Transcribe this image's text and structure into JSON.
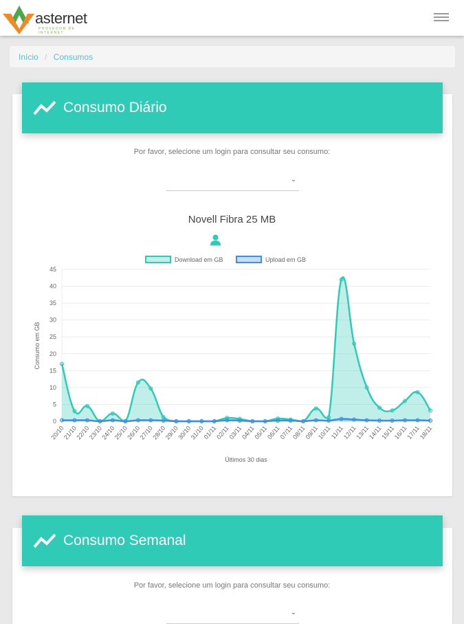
{
  "header": {
    "logo_text": "asternet",
    "logo_tagline": "PROVEDOR DE INTERNET",
    "menu_icon": "hamburger-icon"
  },
  "breadcrumb": {
    "home": "Início",
    "separator": "/",
    "current": "Consumos"
  },
  "daily": {
    "title": "Consumo Diário",
    "prompt": "Por favor, selecione um login para consultar seu consumo:",
    "select_value": "",
    "plan": "Novell Fibra 25 MB"
  },
  "weekly": {
    "title": "Consumo Semanal",
    "prompt": "Por favor, selecione um login para consultar seu consumo:",
    "select_value": ""
  },
  "colors": {
    "accent": "#2fcbb7",
    "download": "#2fcbb7",
    "upload": "#3b8fe8"
  },
  "chart_data": {
    "type": "line",
    "xlabel": "Últimos 30 dias",
    "ylabel": "Consumo em GB",
    "ylim": [
      0,
      45
    ],
    "yticks": [
      0,
      5,
      10,
      15,
      20,
      25,
      30,
      35,
      40,
      45
    ],
    "legend_position": "top",
    "categories": [
      "20/10",
      "21/10",
      "22/10",
      "23/10",
      "24/10",
      "25/10",
      "26/10",
      "27/10",
      "28/10",
      "29/10",
      "30/10",
      "31/10",
      "01/11",
      "02/11",
      "03/11",
      "04/11",
      "05/11",
      "06/11",
      "07/11",
      "08/11",
      "09/11",
      "10/11",
      "11/11",
      "12/11",
      "13/11",
      "14/11",
      "15/11",
      "16/11",
      "17/11",
      "18/11"
    ],
    "series": [
      {
        "name": "Download em GB",
        "values": [
          17,
          3,
          4.5,
          0,
          2.3,
          0,
          11.5,
          9.7,
          1.2,
          0,
          0,
          0,
          0,
          1,
          0.7,
          0,
          0,
          0.8,
          0.5,
          0,
          3.8,
          1.2,
          42,
          23,
          10,
          4,
          3.2,
          6,
          8.6,
          3.2
        ]
      },
      {
        "name": "Upload em GB",
        "values": [
          0.3,
          0.3,
          0.3,
          0,
          0.3,
          0,
          0.3,
          0.3,
          0.2,
          0,
          0,
          0,
          0,
          0.3,
          0.2,
          0,
          0,
          0.2,
          0.2,
          0,
          0.3,
          0.2,
          0.7,
          0.5,
          0.3,
          0.2,
          0.2,
          0.3,
          0.3,
          0.2
        ]
      }
    ]
  }
}
